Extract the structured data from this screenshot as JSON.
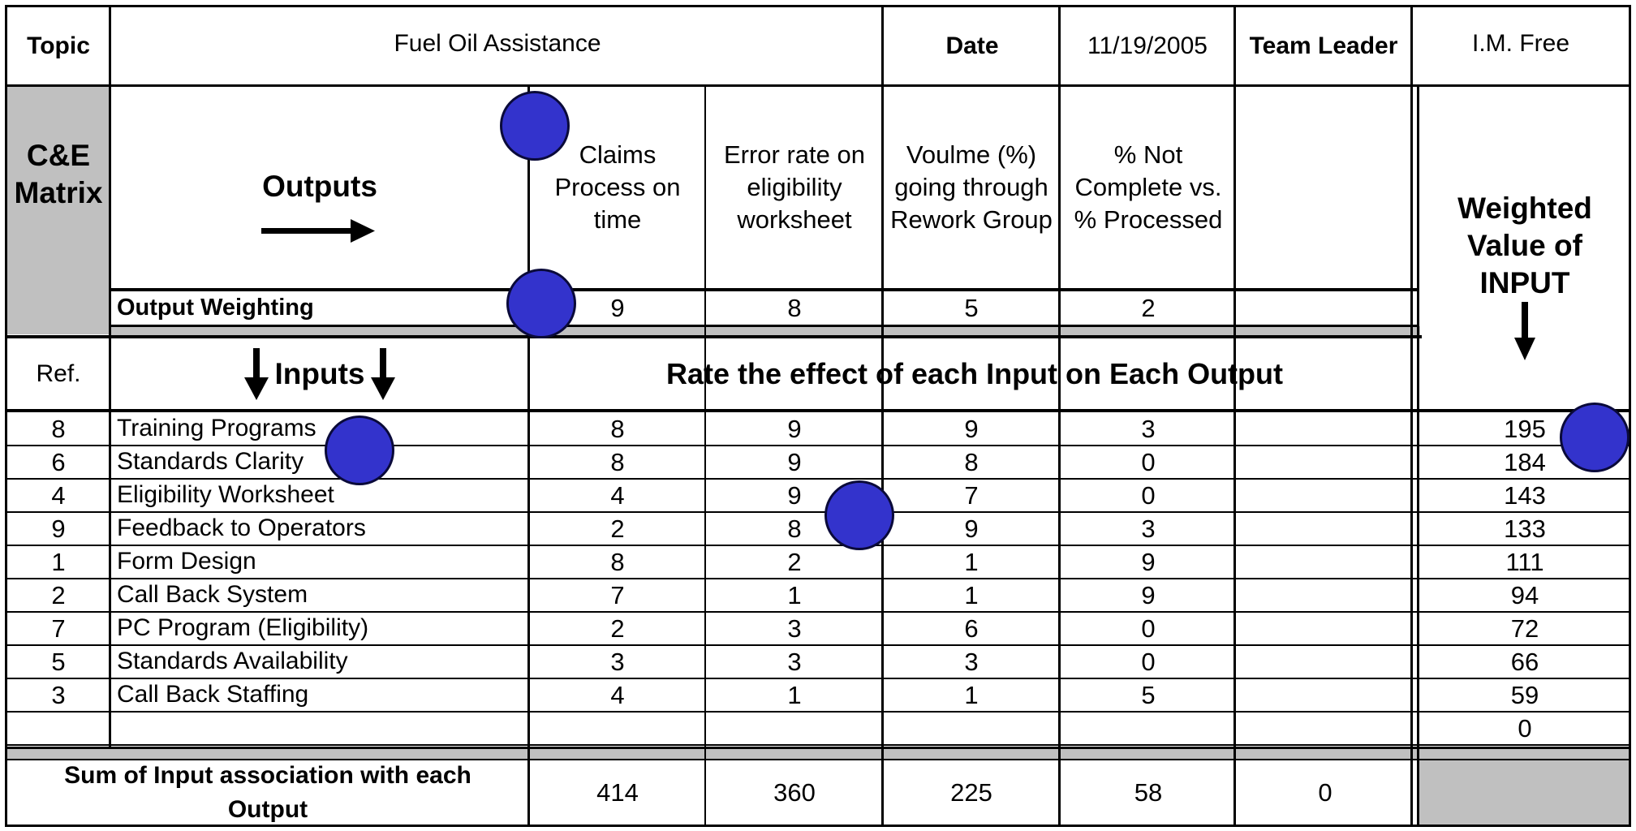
{
  "header": {
    "topic_label": "Topic",
    "topic_value": "Fuel Oil Assistance",
    "date_label": "Date",
    "date_value": "11/19/2005",
    "team_leader_label": "Team Leader",
    "team_leader_value": "I.M. Free"
  },
  "matrix": {
    "title": "C&E\nMatrix",
    "outputs_label": "Outputs",
    "outputs": [
      {
        "caption": "Claims\nProcess on\ntime",
        "weight": "9"
      },
      {
        "caption": "Error rate on\neligibility\nworksheet",
        "weight": "8"
      },
      {
        "caption": "Voulme  (%)\ngoing through\nRework Group",
        "weight": "5"
      },
      {
        "caption": "% Not\nComplete vs.\n% Processed",
        "weight": "2"
      },
      {
        "caption": "",
        "weight": ""
      }
    ],
    "output_weighting_label": "Output Weighting",
    "weighted_value_label": "Weighted\nValue of\nINPUT",
    "ref_label": "Ref.",
    "inputs_label": "Inputs",
    "rate_label": "Rate the effect of each Input on Each Output"
  },
  "rows": [
    {
      "ref": "8",
      "input": "Training Programs",
      "scores": [
        "8",
        "9",
        "9",
        "3",
        ""
      ],
      "weighted": "195"
    },
    {
      "ref": "6",
      "input": "Standards Clarity",
      "scores": [
        "8",
        "9",
        "8",
        "0",
        ""
      ],
      "weighted": "184"
    },
    {
      "ref": "4",
      "input": "Eligibility Worksheet",
      "scores": [
        "4",
        "9",
        "7",
        "0",
        ""
      ],
      "weighted": "143"
    },
    {
      "ref": "9",
      "input": "Feedback to Operators",
      "scores": [
        "2",
        "8",
        "9",
        "3",
        ""
      ],
      "weighted": "133"
    },
    {
      "ref": "1",
      "input": "Form Design",
      "scores": [
        "8",
        "2",
        "1",
        "9",
        ""
      ],
      "weighted": "111"
    },
    {
      "ref": "2",
      "input": "Call Back System",
      "scores": [
        "7",
        "1",
        "1",
        "9",
        ""
      ],
      "weighted": "94"
    },
    {
      "ref": "7",
      "input": "PC Program (Eligibility)",
      "scores": [
        "2",
        "3",
        "6",
        "0",
        ""
      ],
      "weighted": "72"
    },
    {
      "ref": "5",
      "input": "Standards Availability",
      "scores": [
        "3",
        "3",
        "3",
        "0",
        ""
      ],
      "weighted": "66"
    },
    {
      "ref": "3",
      "input": "Call Back Staffing",
      "scores": [
        "4",
        "1",
        "1",
        "5",
        ""
      ],
      "weighted": "59"
    },
    {
      "ref": "",
      "input": "",
      "scores": [
        "",
        "",
        "",
        "",
        ""
      ],
      "weighted": "0"
    }
  ],
  "totals": {
    "label": "Sum of Input association with each\nOutput",
    "values": [
      "414",
      "360",
      "225",
      "58",
      "0"
    ]
  },
  "colors": {
    "marker_fill": "#3333cc",
    "gray_fill": "#c0c0c0"
  }
}
